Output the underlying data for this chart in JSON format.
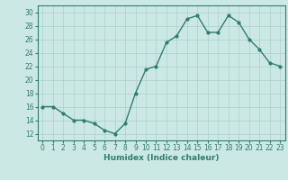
{
  "x": [
    0,
    1,
    2,
    3,
    4,
    5,
    6,
    7,
    8,
    9,
    10,
    11,
    12,
    13,
    14,
    15,
    16,
    17,
    18,
    19,
    20,
    21,
    22,
    23
  ],
  "y": [
    16,
    16,
    15,
    14,
    14,
    13.5,
    12.5,
    12,
    13.5,
    18,
    21.5,
    22,
    25.5,
    26.5,
    29,
    29.5,
    27,
    27,
    29.5,
    28.5,
    26,
    24.5,
    22.5,
    22
  ],
  "xlabel": "Humidex (Indice chaleur)",
  "ylim": [
    11,
    31
  ],
  "xlim": [
    -0.5,
    23.5
  ],
  "yticks": [
    12,
    14,
    16,
    18,
    20,
    22,
    24,
    26,
    28,
    30
  ],
  "xticks": [
    0,
    1,
    2,
    3,
    4,
    5,
    6,
    7,
    8,
    9,
    10,
    11,
    12,
    13,
    14,
    15,
    16,
    17,
    18,
    19,
    20,
    21,
    22,
    23
  ],
  "line_color": "#2e7d6e",
  "marker_size": 2.0,
  "bg_color": "#cce8e4",
  "grid_color": "#aacfca",
  "tick_fontsize": 5.5,
  "xlabel_fontsize": 6.5,
  "line_width": 1.0
}
